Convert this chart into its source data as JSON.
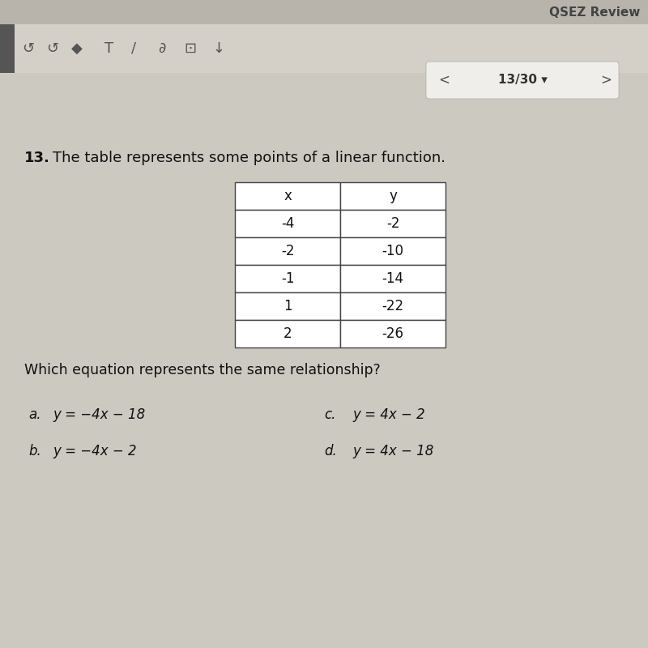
{
  "bg_color": "#ccc9c1",
  "header_bar_color": "#b8b4ac",
  "toolbar_bar_color": "#d4d0c8",
  "header_text": "QSEZ Review",
  "nav_text": "13/30",
  "question_number": "13.",
  "question_text": "The table represents some points of a linear function.",
  "table_headers": [
    "x",
    "y"
  ],
  "table_data": [
    [
      "-4",
      "-2"
    ],
    [
      "-2",
      "-10"
    ],
    [
      "-1",
      "-14"
    ],
    [
      "1",
      "-22"
    ],
    [
      "2",
      "-26"
    ]
  ],
  "sub_question": "Which equation represents the same relationship?",
  "choices": [
    [
      "a.",
      "y = −4x − 18",
      "c.",
      "y = 4x − 2"
    ],
    [
      "b.",
      "y = −4x − 2",
      "d.",
      "y = 4x − 18"
    ]
  ],
  "table_border_color": "#444444",
  "text_color": "#111111",
  "header_color": "#444444",
  "nav_bg": "#f0eeea"
}
